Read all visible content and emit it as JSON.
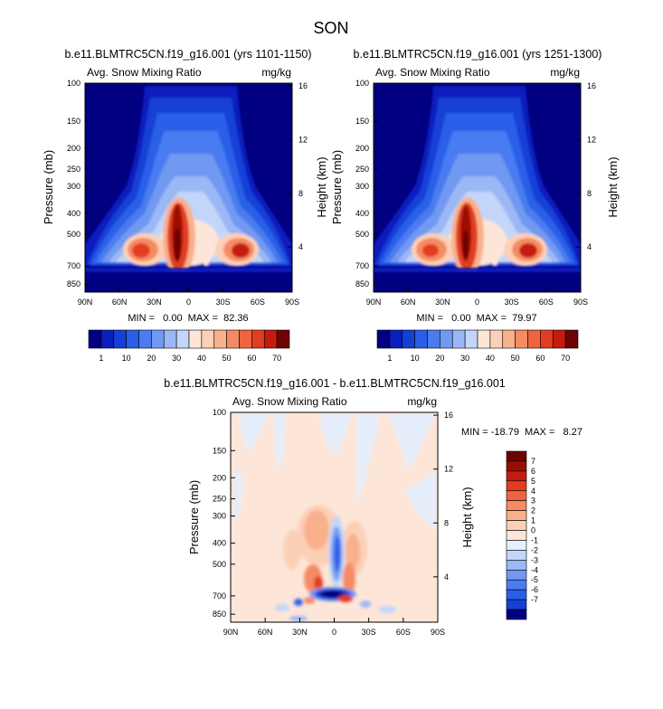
{
  "page_title": "SON",
  "colors": {
    "diverging": [
      "#000080",
      "#0a1fbd",
      "#1440d6",
      "#2a5ee8",
      "#4a7cf0",
      "#7199f2",
      "#9bb8f5",
      "#c3d6fa",
      "#e6eefc",
      "#fde6d8",
      "#fcd0b6",
      "#f9b08c",
      "#f58b63",
      "#ef6440",
      "#e13d22",
      "#c41b10",
      "#9c0c06",
      "#6e0200"
    ],
    "panel_fill": "#000080",
    "diff_background": "#fde6d8"
  },
  "chart_data": [
    {
      "type": "heatmap",
      "name": "panel-1",
      "title": "b.e11.BLMTRC5CN.f19_g16.001 (yrs 1101-1150)",
      "left_label": "Avg. Snow Mixing Ratio",
      "right_label": "mg/kg",
      "ylabel": "Pressure (mb)",
      "ylabel_right": "Height (km)",
      "x_ticks": [
        "90N",
        "60N",
        "30N",
        "0",
        "30S",
        "60S",
        "90S"
      ],
      "y_ticks": [
        "100",
        "150",
        "200",
        "250",
        "300",
        "400",
        "500",
        "700",
        "850"
      ],
      "y_ticks_right": [
        "16",
        "12",
        "8",
        "4"
      ],
      "stats_text": "MIN =   0.00  MAX =  82.36",
      "min": 0.0,
      "max": 82.36,
      "colorbar_ticks": [
        "1",
        "10",
        "20",
        "30",
        "40",
        "50",
        "60",
        "70"
      ]
    },
    {
      "type": "heatmap",
      "name": "panel-2",
      "title": "b.e11.BLMTRC5CN.f19_g16.001 (yrs 1251-1300)",
      "left_label": "Avg. Snow Mixing Ratio",
      "right_label": "mg/kg",
      "ylabel": "Pressure (mb)",
      "ylabel_right": "Height (km)",
      "x_ticks": [
        "90N",
        "60N",
        "30N",
        "0",
        "30S",
        "60S",
        "90S"
      ],
      "y_ticks": [
        "100",
        "150",
        "200",
        "250",
        "300",
        "400",
        "500",
        "700",
        "850"
      ],
      "y_ticks_right": [
        "16",
        "12",
        "8",
        "4"
      ],
      "stats_text": "MIN =   0.00  MAX =  79.97",
      "min": 0.0,
      "max": 79.97,
      "colorbar_ticks": [
        "1",
        "10",
        "20",
        "30",
        "40",
        "50",
        "60",
        "70"
      ]
    },
    {
      "type": "heatmap",
      "name": "panel-diff",
      "title": "b.e11.BLMTRC5CN.f19_g16.001 - b.e11.BLMTRC5CN.f19_g16.001",
      "left_label": "Avg. Snow Mixing Ratio",
      "right_label": "mg/kg",
      "ylabel": "Pressure (mb)",
      "ylabel_right": "Height (km)",
      "x_ticks": [
        "90N",
        "60N",
        "30N",
        "0",
        "30S",
        "60S",
        "90S"
      ],
      "y_ticks": [
        "100",
        "150",
        "200",
        "250",
        "300",
        "400",
        "500",
        "700",
        "850"
      ],
      "y_ticks_right": [
        "16",
        "12",
        "8",
        "4"
      ],
      "stats_text": "MIN = -18.79  MAX =   8.27",
      "min": -18.79,
      "max": 8.27,
      "colorbar_ticks": [
        "7",
        "6",
        "5",
        "4",
        "3",
        "2",
        "1",
        "0",
        "-1",
        "-2",
        "-3",
        "-4",
        "-5",
        "-6",
        "-7"
      ]
    }
  ]
}
